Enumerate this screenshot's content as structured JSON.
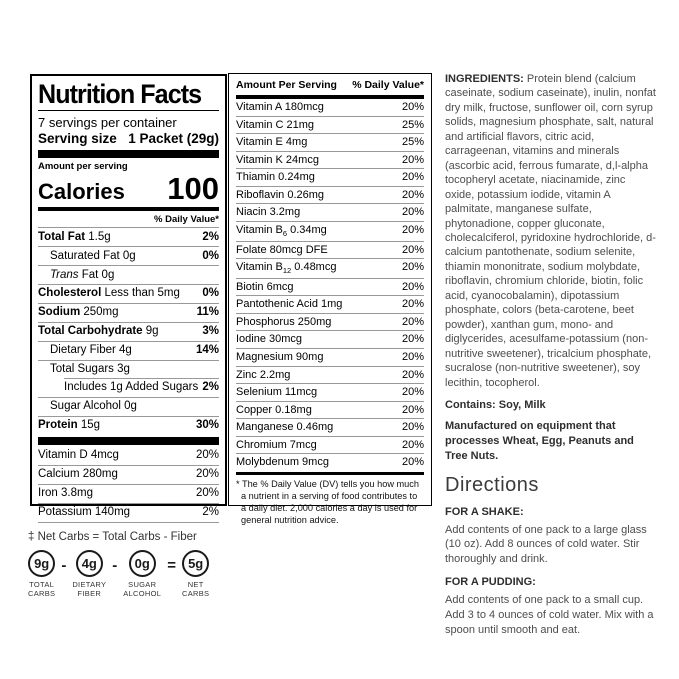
{
  "nutrition_facts": {
    "title": "Nutrition Facts",
    "servings_per_container": "7 servings per container",
    "serving_size_label": "Serving size",
    "serving_size_value": "1 Packet (29g)",
    "amount_per_serving": "Amount per serving",
    "calories_label": "Calories",
    "calories_value": "100",
    "daily_value_header": "% Daily Value*",
    "rows": [
      {
        "bold": "Total Fat",
        "text": " 1.5g",
        "pct": "2%",
        "pct_bold": true,
        "indent": 0
      },
      {
        "text": "Saturated Fat 0g",
        "pct": "0%",
        "pct_bold": true,
        "indent": 1
      },
      {
        "italic": "Trans",
        "text": " Fat 0g",
        "pct": "",
        "indent": 1
      },
      {
        "bold": "Cholesterol",
        "text": " Less than 5mg",
        "pct": "0%",
        "pct_bold": true,
        "indent": 0
      },
      {
        "bold": "Sodium",
        "text": " 250mg",
        "pct": "11%",
        "pct_bold": true,
        "indent": 0
      },
      {
        "bold": "Total Carbohydrate",
        "text": " 9g",
        "pct": "3%",
        "pct_bold": true,
        "indent": 0
      },
      {
        "text": "Dietary Fiber 4g",
        "pct": "14%",
        "pct_bold": true,
        "indent": 1
      },
      {
        "text": "Total Sugars 3g",
        "pct": "",
        "indent": 1,
        "rule_indent": true
      },
      {
        "text": "Includes 1g Added Sugars",
        "pct": "2%",
        "pct_bold": true,
        "indent": 2
      },
      {
        "text": "Sugar Alcohol 0g",
        "pct": "",
        "indent": 1
      },
      {
        "bold": "Protein",
        "text": " 15g",
        "pct": "30%",
        "pct_bold": true,
        "indent": 0,
        "divider_after": true
      },
      {
        "text": "Vitamin D 4mcg",
        "pct": "20%",
        "indent": 0
      },
      {
        "text": "Calcium 280mg",
        "pct": "20%",
        "indent": 0
      },
      {
        "text": "Iron 3.8mg",
        "pct": "20%",
        "indent": 0
      },
      {
        "text": "Potassium 140mg",
        "pct": "2%",
        "indent": 0
      }
    ]
  },
  "micronutrients": {
    "header_left": "Amount Per Serving",
    "header_right": "% Daily Value*",
    "rows": [
      {
        "name": "Vitamin A 180mcg",
        "pct": "20%"
      },
      {
        "name": "Vitamin C 21mg",
        "pct": "25%"
      },
      {
        "name": "Vitamin E 4mg",
        "pct": "25%"
      },
      {
        "name": "Vitamin K 24mcg",
        "pct": "20%"
      },
      {
        "name": "Thiamin 0.24mg",
        "pct": "20%"
      },
      {
        "name": "Riboflavin 0.26mg",
        "pct": "20%"
      },
      {
        "name": "Niacin 3.2mg",
        "pct": "20%"
      },
      {
        "name": "Vitamin B₆ 0.34mg",
        "pct": "20%"
      },
      {
        "name": "Folate 80mcg DFE",
        "pct": "20%"
      },
      {
        "name": "Vitamin B₁₂ 0.48mcg",
        "pct": "20%"
      },
      {
        "name": "Biotin 6mcg",
        "pct": "20%"
      },
      {
        "name": "Pantothenic Acid 1mg",
        "pct": "20%"
      },
      {
        "name": "Phosphorus 250mg",
        "pct": "20%"
      },
      {
        "name": "Iodine 30mcg",
        "pct": "20%"
      },
      {
        "name": "Magnesium 90mg",
        "pct": "20%"
      },
      {
        "name": "Zinc 2.2mg",
        "pct": "20%"
      },
      {
        "name": "Selenium 11mcg",
        "pct": "20%"
      },
      {
        "name": "Copper 0.18mg",
        "pct": "20%"
      },
      {
        "name": "Manganese 0.46mg",
        "pct": "20%"
      },
      {
        "name": "Chromium 7mcg",
        "pct": "20%"
      },
      {
        "name": "Molybdenum 9mcg",
        "pct": "20%"
      }
    ],
    "footnote": "* The % Daily Value (DV) tells you how much a nutrient in a serving of food contributes to a daily diet. 2,000 calories a day is used for general nutrition advice."
  },
  "ingredients": {
    "lead": "INGREDIENTS:",
    "text": " Protein blend (calcium caseinate, sodium caseinate), inulin, nonfat dry milk, fructose, sunflower oil, corn syrup solids, magnesium phosphate, salt, natural and artificial flavors, citric acid, carrageenan, vitamins and minerals (ascorbic acid, ferrous fumarate, d,l-alpha tocopheryl acetate, niacinamide, zinc oxide, potassium iodide, vitamin A palmitate, manganese sulfate, phytonadione, copper gluconate, cholecalciferol, pyridoxine hydrochloride, d-calcium pantothenate, sodium selenite, thiamin mononitrate, sodium molybdate, riboflavin, chromium chloride, biotin, folic acid, cyanocobalamin), dipotassium phosphate, colors (beta-carotene, beet powder), xanthan gum, mono- and diglycerides, acesulfame-potassium (non-nutritive sweetener), tricalcium phosphate, sucralose (non-nutritive sweetener), soy lecithin, tocopherol.",
    "contains": "Contains: Soy, Milk",
    "manufactured": "Manufactured on equipment that processes Wheat, Egg, Peanuts and Tree Nuts."
  },
  "directions": {
    "title": "Directions",
    "shake_heading": "FOR A SHAKE:",
    "shake_text": "Add contents of one pack to a large glass (10 oz). Add 8 ounces of cold water. Stir thoroughly and drink.",
    "pudding_heading": "FOR A PUDDING:",
    "pudding_text": "Add contents of one pack to a small cup. Add 3 to 4 ounces of cold water. Mix with a spoon until smooth and eat."
  },
  "net_carbs": {
    "note": "‡ Net Carbs = Total Carbs - Fiber",
    "items": [
      {
        "value": "9g",
        "label": "TOTAL\nCARBS"
      },
      {
        "value": "4g",
        "label": "DIETARY\nFIBER"
      },
      {
        "value": "0g",
        "label": "SUGAR\nALCOHOL"
      },
      {
        "value": "5g",
        "label": "NET\nCARBS"
      }
    ],
    "operators": [
      "-",
      "-",
      "="
    ]
  }
}
